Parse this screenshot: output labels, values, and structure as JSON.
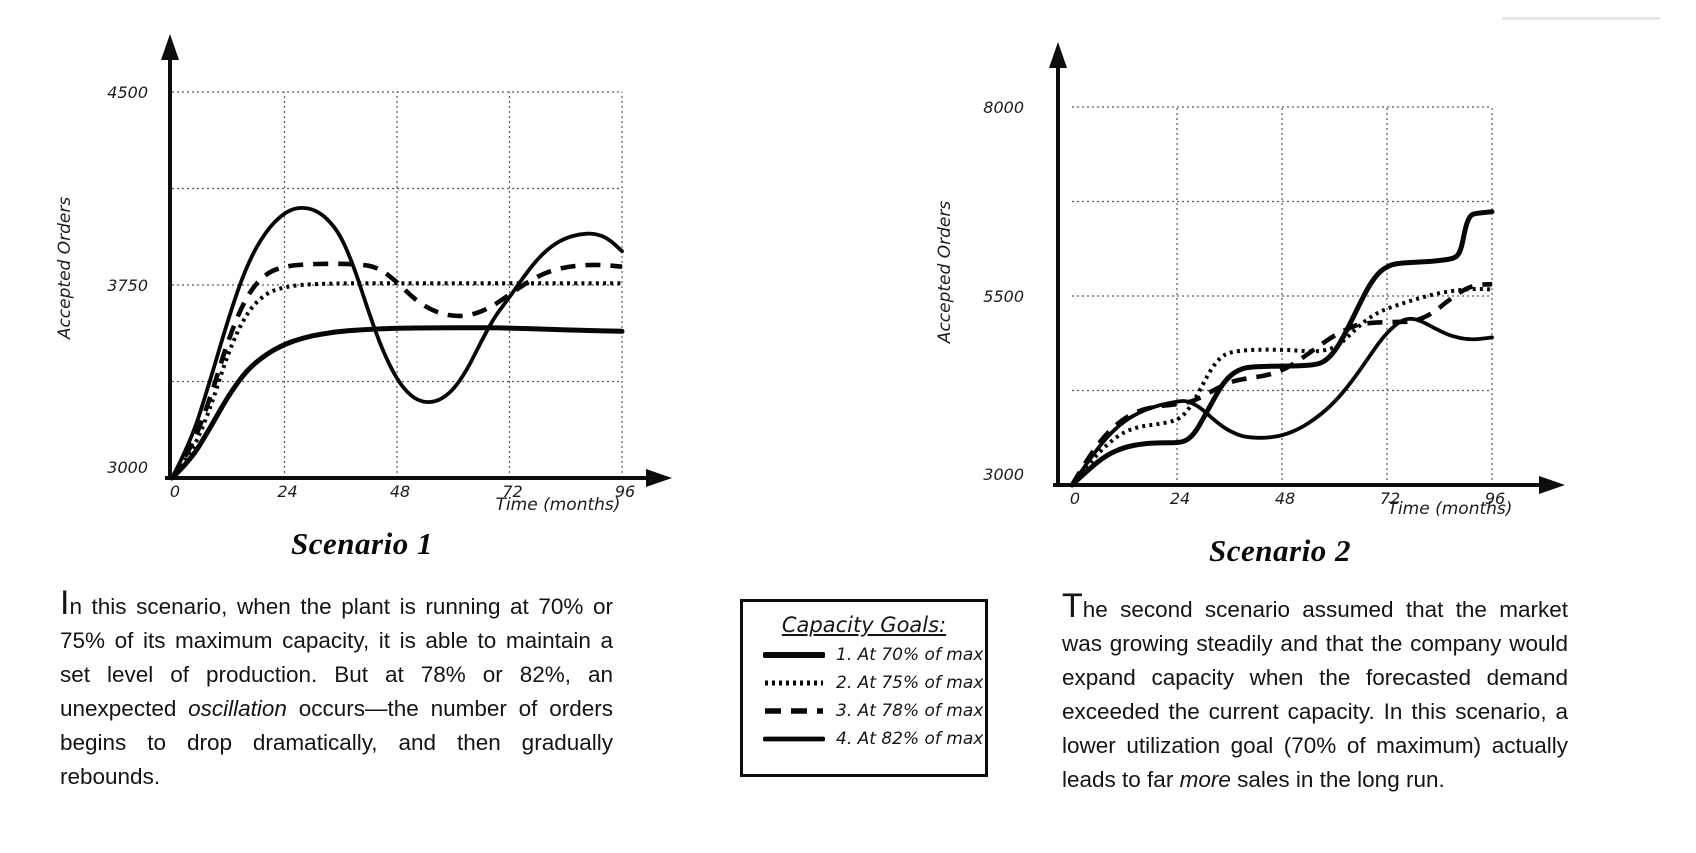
{
  "chart_data": [
    {
      "type": "line",
      "id": "scenario1",
      "caption": "Scenario 1",
      "xlabel": "Time (months)",
      "ylabel": "Accepted Orders",
      "x_range": [
        0,
        96
      ],
      "x_axis": {
        "labeled_ticks": [
          0,
          24,
          48,
          72,
          96
        ],
        "gridlines": [
          24,
          48,
          72,
          96
        ]
      },
      "y_axis": {
        "min": 3000,
        "max": 4500,
        "labeled_ticks": [
          3000,
          3750,
          4500
        ],
        "gridlines": [
          3375,
          3750,
          4125,
          4500
        ]
      },
      "grid": true,
      "series": [
        {
          "name": "2. At 75% of max",
          "goal_pct": 75,
          "style": "dotted",
          "points": [
            [
              0,
              3000
            ],
            [
              4,
              3090
            ],
            [
              8,
              3260
            ],
            [
              12,
              3490
            ],
            [
              16,
              3645
            ],
            [
              20,
              3718
            ],
            [
              24,
              3742
            ],
            [
              28,
              3752
            ],
            [
              34,
              3756
            ],
            [
              42,
              3757
            ],
            [
              50,
              3757
            ],
            [
              58,
              3757
            ],
            [
              66,
              3757
            ],
            [
              74,
              3757
            ],
            [
              82,
              3757
            ],
            [
              90,
              3757
            ],
            [
              96,
              3757
            ]
          ]
        },
        {
          "name": "3. At 78% of max",
          "goal_pct": 78,
          "style": "dashed",
          "points": [
            [
              0,
              3000
            ],
            [
              4,
              3110
            ],
            [
              8,
              3300
            ],
            [
              12,
              3540
            ],
            [
              16,
              3712
            ],
            [
              20,
              3796
            ],
            [
              24,
              3822
            ],
            [
              28,
              3830
            ],
            [
              34,
              3833
            ],
            [
              40,
              3831
            ],
            [
              44,
              3818
            ],
            [
              48,
              3762
            ],
            [
              52,
              3690
            ],
            [
              56,
              3646
            ],
            [
              60,
              3628
            ],
            [
              64,
              3633
            ],
            [
              68,
              3663
            ],
            [
              72,
              3713
            ],
            [
              76,
              3763
            ],
            [
              80,
              3801
            ],
            [
              84,
              3820
            ],
            [
              88,
              3828
            ],
            [
              92,
              3828
            ],
            [
              96,
              3821
            ]
          ]
        },
        {
          "name": "4. At 82% of max",
          "goal_pct": 82,
          "style": "solid",
          "points": [
            [
              0,
              3000
            ],
            [
              4,
              3140
            ],
            [
              8,
              3370
            ],
            [
              12,
              3620
            ],
            [
              16,
              3830
            ],
            [
              20,
              3960
            ],
            [
              24,
              4032
            ],
            [
              27,
              4052
            ],
            [
              30,
              4046
            ],
            [
              33,
              4012
            ],
            [
              36,
              3942
            ],
            [
              39,
              3812
            ],
            [
              42,
              3642
            ],
            [
              45,
              3492
            ],
            [
              48,
              3382
            ],
            [
              51,
              3316
            ],
            [
              54,
              3292
            ],
            [
              57,
              3300
            ],
            [
              60,
              3342
            ],
            [
              63,
              3422
            ],
            [
              66,
              3532
            ],
            [
              69,
              3632
            ],
            [
              72,
              3702
            ],
            [
              75,
              3782
            ],
            [
              78,
              3852
            ],
            [
              81,
              3902
            ],
            [
              84,
              3933
            ],
            [
              87,
              3948
            ],
            [
              90,
              3951
            ],
            [
              93,
              3932
            ],
            [
              96,
              3881
            ]
          ]
        },
        {
          "name": "1. At 70% of max",
          "goal_pct": 70,
          "style": "solid-thick",
          "points": [
            [
              0,
              3000
            ],
            [
              4,
              3070
            ],
            [
              8,
              3190
            ],
            [
              12,
              3320
            ],
            [
              16,
              3420
            ],
            [
              20,
              3480
            ],
            [
              24,
              3520
            ],
            [
              28,
              3545
            ],
            [
              32,
              3560
            ],
            [
              36,
              3570
            ],
            [
              42,
              3578
            ],
            [
              48,
              3582
            ],
            [
              56,
              3584
            ],
            [
              64,
              3584
            ],
            [
              72,
              3583
            ],
            [
              80,
              3578
            ],
            [
              88,
              3573
            ],
            [
              96,
              3570
            ]
          ]
        }
      ]
    },
    {
      "type": "line",
      "id": "scenario2",
      "caption": "Scenario 2",
      "xlabel": "Time (months)",
      "ylabel": "Accepted Orders",
      "x_range": [
        0,
        96
      ],
      "x_axis": {
        "labeled_ticks": [
          0,
          24,
          48,
          72,
          96
        ],
        "gridlines": [
          24,
          48,
          72,
          96
        ]
      },
      "y_axis": {
        "min": 3000,
        "max": 8000,
        "labeled_ticks": [
          3000,
          5500,
          8000
        ],
        "gridlines": [
          4250,
          5500,
          6750,
          8000
        ]
      },
      "grid": true,
      "series": [
        {
          "name": "2. At 75% of max",
          "goal_pct": 75,
          "style": "dotted",
          "points": [
            [
              0,
              3000
            ],
            [
              4,
              3290
            ],
            [
              8,
              3540
            ],
            [
              12,
              3710
            ],
            [
              16,
              3780
            ],
            [
              20,
              3806
            ],
            [
              24,
              3856
            ],
            [
              26,
              3952
            ],
            [
              28,
              4122
            ],
            [
              30,
              4342
            ],
            [
              32,
              4552
            ],
            [
              34,
              4692
            ],
            [
              36,
              4756
            ],
            [
              40,
              4786
            ],
            [
              44,
              4791
            ],
            [
              48,
              4789
            ],
            [
              52,
              4776
            ],
            [
              56,
              4762
            ],
            [
              60,
              4812
            ],
            [
              62,
              4902
            ],
            [
              64,
              5012
            ],
            [
              66,
              5122
            ],
            [
              68,
              5212
            ],
            [
              70,
              5282
            ],
            [
              72,
              5332
            ],
            [
              76,
              5412
            ],
            [
              80,
              5482
            ],
            [
              84,
              5541
            ],
            [
              88,
              5576
            ],
            [
              92,
              5596
            ],
            [
              96,
              5586
            ]
          ]
        },
        {
          "name": "3. At 78% of max",
          "goal_pct": 78,
          "style": "dashed",
          "points": [
            [
              0,
              3000
            ],
            [
              4,
              3390
            ],
            [
              8,
              3690
            ],
            [
              12,
              3890
            ],
            [
              16,
              4000
            ],
            [
              20,
              4046
            ],
            [
              24,
              4066
            ],
            [
              28,
              4112
            ],
            [
              32,
              4242
            ],
            [
              36,
              4362
            ],
            [
              40,
              4412
            ],
            [
              44,
              4442
            ],
            [
              48,
              4512
            ],
            [
              52,
              4652
            ],
            [
              56,
              4822
            ],
            [
              60,
              4982
            ],
            [
              64,
              5092
            ],
            [
              66,
              5132
            ],
            [
              70,
              5152
            ],
            [
              74,
              5156
            ],
            [
              78,
              5162
            ],
            [
              82,
              5252
            ],
            [
              86,
              5442
            ],
            [
              90,
              5602
            ],
            [
              93,
              5652
            ],
            [
              96,
              5656
            ]
          ]
        },
        {
          "name": "4. At 82% of max",
          "goal_pct": 82,
          "style": "solid",
          "points": [
            [
              0,
              3000
            ],
            [
              4,
              3340
            ],
            [
              8,
              3640
            ],
            [
              12,
              3850
            ],
            [
              16,
              3980
            ],
            [
              20,
              4060
            ],
            [
              24,
              4105
            ],
            [
              26,
              4115
            ],
            [
              28,
              4070
            ],
            [
              30,
              3990
            ],
            [
              32,
              3885
            ],
            [
              34,
              3790
            ],
            [
              36,
              3715
            ],
            [
              38,
              3662
            ],
            [
              40,
              3632
            ],
            [
              44,
              3620
            ],
            [
              48,
              3652
            ],
            [
              52,
              3742
            ],
            [
              56,
              3892
            ],
            [
              60,
              4092
            ],
            [
              64,
              4372
            ],
            [
              68,
              4702
            ],
            [
              70,
              4872
            ],
            [
              72,
              5012
            ],
            [
              74,
              5122
            ],
            [
              76,
              5192
            ],
            [
              78,
              5202
            ],
            [
              80,
              5162
            ],
            [
              82,
              5102
            ],
            [
              84,
              5042
            ],
            [
              86,
              4986
            ],
            [
              88,
              4952
            ],
            [
              90,
              4932
            ],
            [
              92,
              4926
            ],
            [
              94,
              4936
            ],
            [
              96,
              4952
            ]
          ]
        },
        {
          "name": "1. At 70% of max",
          "goal_pct": 70,
          "style": "solid-thick",
          "points": [
            [
              0,
              3000
            ],
            [
              4,
              3220
            ],
            [
              8,
              3400
            ],
            [
              12,
              3500
            ],
            [
              16,
              3545
            ],
            [
              20,
              3557
            ],
            [
              24,
              3560
            ],
            [
              26,
              3580
            ],
            [
              28,
              3680
            ],
            [
              30,
              3880
            ],
            [
              32,
              4090
            ],
            [
              34,
              4300
            ],
            [
              36,
              4440
            ],
            [
              38,
              4520
            ],
            [
              40,
              4556
            ],
            [
              44,
              4570
            ],
            [
              48,
              4572
            ],
            [
              52,
              4576
            ],
            [
              56,
              4592
            ],
            [
              58,
              4645
            ],
            [
              60,
              4765
            ],
            [
              62,
              4955
            ],
            [
              64,
              5185
            ],
            [
              66,
              5425
            ],
            [
              68,
              5645
            ],
            [
              70,
              5805
            ],
            [
              72,
              5890
            ],
            [
              74,
              5930
            ],
            [
              78,
              5946
            ],
            [
              82,
              5956
            ],
            [
              86,
              5982
            ],
            [
              88,
              6015
            ],
            [
              89,
              6130
            ],
            [
              90,
              6430
            ],
            [
              91,
              6562
            ],
            [
              92,
              6592
            ],
            [
              96,
              6615
            ]
          ]
        }
      ]
    }
  ],
  "legend": {
    "title": "Capacity Goals:",
    "items": [
      {
        "label": "1. At 70% of max",
        "style": "solid-thick"
      },
      {
        "label": "2. At 75% of max",
        "style": "dotted"
      },
      {
        "label": "3. At 78% of max",
        "style": "dashed"
      },
      {
        "label": "4. At 82% of max",
        "style": "solid"
      }
    ]
  },
  "sections": [
    {
      "heading": "Scenario 1",
      "paragraph": [
        {
          "text": "In this scenario, when the plant is running at 70% or 75% of its maximum capacity, it is able to maintain a set level of production.  But at 78% or 82%, an unexpected "
        },
        {
          "text": "oscillation",
          "italic": true
        },
        {
          "text": " occurs—the number of orders begins to drop dramatically, and then gradually rebounds."
        }
      ]
    },
    {
      "heading": "Scenario 2",
      "paragraph": [
        {
          "text": "The second scenario assumed that the market was growing steadily and that the company would expand capacity when the forecasted demand exceeded the current capacity.  In this scenario, a lower utilization goal (70% of maximum) actually leads to far "
        },
        {
          "text": "more",
          "italic": true
        },
        {
          "text": " sales in the long run."
        }
      ]
    }
  ]
}
